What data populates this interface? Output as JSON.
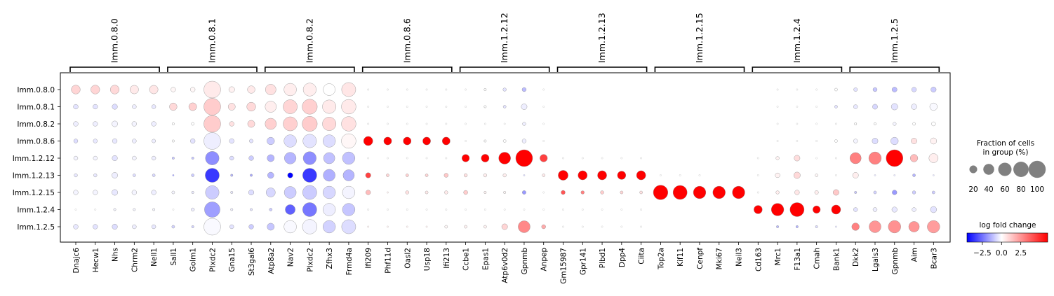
{
  "chart_data": {
    "type": "dotplot",
    "rows": [
      "Imm.0.8.0",
      "Imm.0.8.1",
      "Imm.0.8.2",
      "Imm.0.8.6",
      "Imm.1.2.12",
      "Imm.1.2.13",
      "Imm.1.2.15",
      "Imm.1.2.4",
      "Imm.1.2.5"
    ],
    "groups": [
      {
        "name": "Imm.0.8.0",
        "genes": [
          "Dnajc6",
          "Hecw1",
          "Nhs",
          "Chrm2",
          "Nell1"
        ]
      },
      {
        "name": "Imm.0.8.1",
        "genes": [
          "Sall1",
          "Golm1",
          "Plxdc2",
          "Gna15",
          "St3gal6"
        ]
      },
      {
        "name": "Imm.0.8.2",
        "genes": [
          "Atp8a2",
          "Nav2",
          "Plxdc2",
          "Zfhx3",
          "Frmd4a"
        ]
      },
      {
        "name": "Imm.0.8.6",
        "genes": [
          "Ifi209",
          "Phf11d",
          "Oasl2",
          "Usp18",
          "Ifi213"
        ]
      },
      {
        "name": "Imm.1.2.12",
        "genes": [
          "Ccbe1",
          "Epas1",
          "Atp6v0d2",
          "Gpnmb",
          "Anpep"
        ]
      },
      {
        "name": "Imm.1.2.13",
        "genes": [
          "Gm15987",
          "Gpr141",
          "Plbd1",
          "Dpp4",
          "Ciita"
        ]
      },
      {
        "name": "Imm.1.2.15",
        "genes": [
          "Top2a",
          "Kif11",
          "Cenpf",
          "Mki67",
          "Neil3"
        ]
      },
      {
        "name": "Imm.1.2.4",
        "genes": [
          "Cd163",
          "Mrc1",
          "F13a1",
          "Cmah",
          "Bank1"
        ]
      },
      {
        "name": "Imm.1.2.5",
        "genes": [
          "Dkk2",
          "Lgals3",
          "Gpnmb",
          "Aim",
          "Bcar3"
        ]
      }
    ],
    "fraction_pct": [
      [
        28,
        28,
        28,
        26,
        26,
        8,
        8,
        100,
        12,
        20,
        40,
        55,
        60,
        50,
        70,
        1,
        1,
        1,
        1,
        1,
        1,
        2,
        4,
        6,
        1,
        0,
        0,
        0,
        0,
        0,
        0,
        0,
        0,
        0,
        0,
        0,
        1,
        1,
        1,
        3,
        5,
        6,
        9,
        8,
        10
      ],
      [
        8,
        8,
        10,
        6,
        6,
        20,
        22,
        100,
        18,
        28,
        45,
        70,
        80,
        65,
        75,
        1,
        1,
        1,
        1,
        1,
        1,
        2,
        3,
        12,
        1,
        0,
        0,
        0,
        0,
        0,
        0,
        0,
        0,
        0,
        0,
        0,
        1,
        1,
        1,
        3,
        6,
        9,
        15,
        11,
        20
      ],
      [
        8,
        8,
        12,
        8,
        8,
        2,
        3,
        100,
        8,
        18,
        45,
        70,
        80,
        65,
        75,
        1,
        1,
        1,
        1,
        1,
        1,
        1,
        1,
        4,
        1,
        0,
        0,
        0,
        0,
        0,
        0,
        0,
        0,
        0,
        0,
        0,
        1,
        1,
        1,
        1,
        2,
        2,
        4,
        3,
        6
      ],
      [
        6,
        6,
        8,
        6,
        5,
        2,
        8,
        100,
        8,
        5,
        20,
        55,
        65,
        55,
        75,
        30,
        22,
        22,
        22,
        22,
        1,
        2,
        3,
        6,
        1,
        0,
        0,
        0,
        0,
        0,
        0,
        0,
        0,
        0,
        0,
        0,
        1,
        1,
        1,
        3,
        6,
        12,
        20,
        12,
        14
      ],
      [
        6,
        6,
        10,
        6,
        6,
        2,
        2,
        65,
        6,
        8,
        18,
        48,
        60,
        45,
        55,
        1,
        1,
        1,
        1,
        1,
        20,
        22,
        50,
        100,
        20,
        1,
        1,
        1,
        1,
        1,
        0,
        0,
        0,
        0,
        0,
        1,
        4,
        12,
        1,
        1,
        45,
        55,
        100,
        20,
        30
      ],
      [
        4,
        4,
        12,
        3,
        3,
        1,
        3,
        70,
        2,
        2,
        14,
        10,
        70,
        50,
        45,
        10,
        3,
        3,
        3,
        6,
        4,
        4,
        4,
        1,
        3,
        35,
        30,
        30,
        25,
        30,
        1,
        1,
        1,
        0,
        0,
        1,
        8,
        15,
        3,
        1,
        12,
        1,
        1,
        3,
        1
      ],
      [
        8,
        8,
        12,
        8,
        8,
        3,
        2,
        65,
        2,
        10,
        30,
        50,
        70,
        55,
        55,
        8,
        1,
        4,
        3,
        4,
        6,
        2,
        2,
        5,
        1,
        6,
        4,
        4,
        3,
        3,
        75,
        70,
        55,
        55,
        55,
        1,
        4,
        8,
        5,
        12,
        2,
        3,
        8,
        4,
        3
      ],
      [
        1,
        1,
        2,
        2,
        2,
        1,
        4,
        85,
        2,
        2,
        3,
        35,
        70,
        55,
        55,
        1,
        1,
        1,
        1,
        1,
        1,
        1,
        1,
        1,
        1,
        1,
        1,
        1,
        1,
        1,
        0,
        0,
        0,
        0,
        0,
        25,
        55,
        70,
        20,
        30,
        6,
        6,
        10,
        6,
        14
      ],
      [
        8,
        8,
        10,
        6,
        6,
        3,
        2,
        100,
        6,
        8,
        18,
        55,
        75,
        55,
        70,
        1,
        1,
        1,
        1,
        3,
        3,
        3,
        12,
        50,
        6,
        1,
        1,
        1,
        1,
        1,
        0,
        0,
        0,
        0,
        0,
        0,
        2,
        2,
        2,
        1,
        20,
        50,
        55,
        40,
        55
      ]
    ],
    "logfoldchange": [
      [
        1.0,
        1.0,
        0.9,
        0.5,
        0.6,
        0.2,
        0.2,
        0.5,
        0.3,
        0.5,
        0.7,
        0.4,
        0.4,
        0.0,
        0.6,
        0,
        0,
        0,
        0,
        0,
        0,
        0,
        -0.5,
        -1.2,
        0,
        0,
        0,
        0,
        0,
        0,
        0,
        0,
        0,
        0,
        0,
        0,
        0,
        0,
        0,
        0,
        -0.5,
        -1.0,
        -1.2,
        -0.7,
        -0.9
      ],
      [
        -0.5,
        -0.5,
        -0.6,
        -0.3,
        -0.4,
        0.9,
        1.1,
        1.2,
        0.7,
        0.9,
        0.4,
        1.0,
        1.1,
        0.5,
        0.5,
        0,
        0,
        0,
        0,
        0,
        0,
        0,
        -0.5,
        -0.3,
        0,
        0,
        0,
        0,
        0,
        0,
        0,
        0,
        0,
        0,
        0,
        0,
        0,
        0,
        0,
        -0.5,
        -0.4,
        -0.7,
        -0.5,
        -0.3,
        -0.1
      ],
      [
        -0.3,
        -0.3,
        -0.2,
        -0.2,
        -0.3,
        0,
        0,
        1.2,
        0.7,
        0.9,
        1.1,
        1.1,
        1.2,
        0.9,
        0.7,
        0,
        0,
        0,
        0,
        0,
        0,
        0,
        0,
        -0.3,
        0,
        0,
        0,
        0,
        0,
        0,
        0,
        0,
        0,
        0,
        0,
        0,
        0,
        0,
        0,
        0,
        0,
        0,
        -0.2,
        0,
        0
      ],
      [
        -0.6,
        -0.4,
        -0.4,
        -0.3,
        -0.3,
        0,
        -0.5,
        -0.3,
        -0.5,
        -0.5,
        -0.9,
        -0.6,
        -0.5,
        -0.6,
        0.2,
        6,
        6,
        6,
        6,
        6,
        0,
        0,
        0,
        -0.3,
        0,
        0,
        0,
        0,
        0,
        0,
        0,
        0,
        0,
        0,
        0,
        0,
        0,
        0,
        0,
        0,
        -0.2,
        -0.6,
        -0.6,
        0.7,
        0.3
      ],
      [
        -0.2,
        -0.2,
        -0.5,
        -0.2,
        -0.3,
        -1.0,
        -1.0,
        -2.0,
        -0.6,
        -0.9,
        -1.3,
        -1.3,
        -2.0,
        -1.1,
        -1.1,
        0,
        0,
        0,
        0,
        0,
        6,
        6,
        6,
        6,
        4.5,
        0,
        0,
        0,
        0,
        0,
        0,
        0,
        0,
        0,
        0,
        0,
        0.3,
        0.8,
        0,
        0,
        3.0,
        3.0,
        6,
        1.6,
        0.4
      ],
      [
        -0.4,
        -0.4,
        -0.3,
        -0.6,
        -0.7,
        -1.5,
        -0.9,
        -3.5,
        -1.3,
        -1.5,
        -1.3,
        -4.5,
        -3.5,
        -1.4,
        -1.3,
        4.5,
        1,
        1.1,
        1,
        1.3,
        0.7,
        0.4,
        0.4,
        -0.6,
        0.5,
        6,
        6,
        6,
        6,
        6,
        0,
        0,
        0,
        0,
        0,
        0,
        0.3,
        0.9,
        0.2,
        0,
        0.4,
        -0.4,
        -0.4,
        -1.3,
        -0.4
      ],
      [
        -0.2,
        -0.2,
        -0.4,
        -0.2,
        -0.3,
        -0.2,
        -0.4,
        -0.9,
        -0.4,
        -0.6,
        -0.7,
        -0.9,
        -0.9,
        -0.7,
        -0.2,
        1.6,
        0.3,
        0.7,
        0.5,
        0.5,
        1.2,
        0.3,
        0.2,
        -1.8,
        0,
        4,
        3,
        1.2,
        1,
        0.7,
        6,
        6,
        6,
        6,
        6,
        0,
        0.4,
        0.6,
        0.4,
        1.3,
        -1.0,
        -0.8,
        -1.8,
        -0.9,
        -0.9
      ],
      [
        0,
        0,
        -0.2,
        -0.2,
        -0.2,
        0,
        -0.3,
        -1.7,
        -0.3,
        -0.5,
        -0.9,
        -2.8,
        -2.4,
        -0.3,
        -1.0,
        0,
        0,
        0,
        0,
        0,
        0,
        0,
        0,
        0,
        0,
        0,
        0,
        0,
        0,
        0,
        0,
        0,
        0,
        0,
        0,
        6,
        6,
        6,
        6,
        6,
        -0.5,
        -0.3,
        -0.4,
        -0.3,
        -0.5
      ],
      [
        -0.4,
        -0.5,
        -0.6,
        -0.3,
        -0.4,
        -0.8,
        -0.8,
        -0.1,
        -0.5,
        -0.9,
        -1.0,
        -0.1,
        -0.2,
        -0.8,
        -0.6,
        0.3,
        0.3,
        0.3,
        0.3,
        0.2,
        0.3,
        0.3,
        1.0,
        2.8,
        2.0,
        0,
        0,
        0,
        0,
        0,
        0,
        0,
        0,
        0,
        0,
        0,
        -1.2,
        -1.3,
        -0.6,
        -0.5,
        3.0,
        2.5,
        2.6,
        2.5,
        2.3
      ]
    ],
    "size_legend": {
      "title": "Fraction of cells\nin group (%)",
      "ticks": [
        "20",
        "40",
        "60",
        "80",
        "100"
      ],
      "values": [
        20,
        40,
        60,
        80,
        100
      ]
    },
    "color_legend": {
      "title": "log fold change",
      "ticks": [
        "−2.5",
        "0.0",
        "2.5"
      ],
      "values": [
        -2.5,
        0.0,
        2.5
      ],
      "range": [
        -4.5,
        6.0
      ],
      "colormap": "bwr"
    }
  }
}
